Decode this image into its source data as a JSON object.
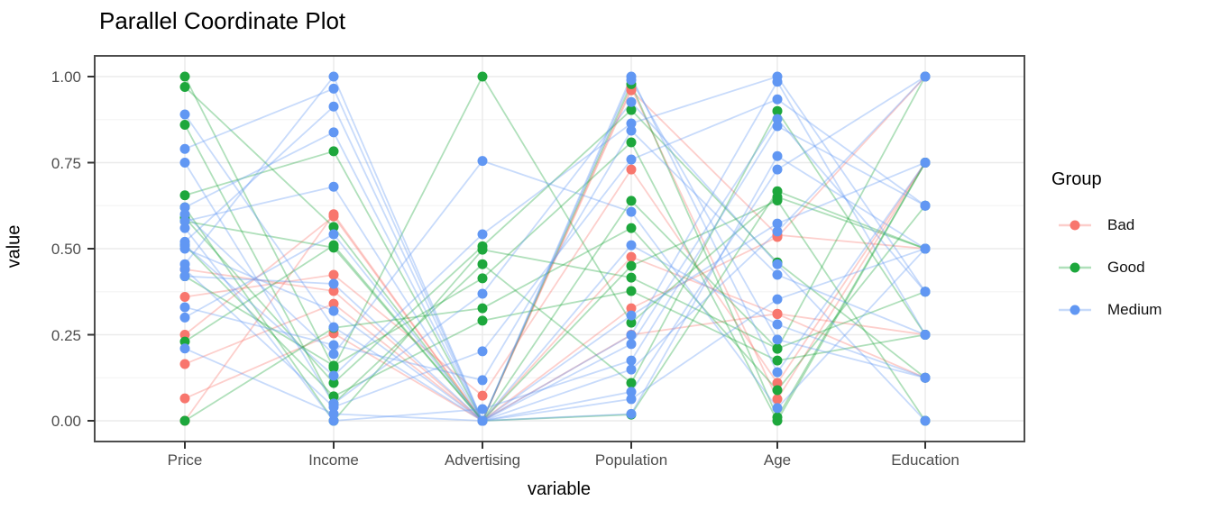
{
  "chart": {
    "title": "Parallel Coordinate Plot",
    "xlabel": "variable",
    "ylabel": "value",
    "legend": {
      "title": "Group",
      "entries": [
        {
          "label": "Bad",
          "color": "#F8766D"
        },
        {
          "label": "Good",
          "color": "#1DA73C"
        },
        {
          "label": "Medium",
          "color": "#6197F3"
        }
      ]
    }
  },
  "chart_data": {
    "type": "line",
    "variant": "parallel-coordinates",
    "title": "Parallel Coordinate Plot",
    "xlabel": "variable",
    "ylabel": "value",
    "categories": [
      "Price",
      "Income",
      "Advertising",
      "Population",
      "Age",
      "Education"
    ],
    "ytick_labels": [
      "0.00",
      "0.25",
      "0.50",
      "0.75",
      "1.00"
    ],
    "ytick_values": [
      0,
      0.25,
      0.5,
      0.75,
      1.0
    ],
    "minor_ytick_values": [
      0.125,
      0.375,
      0.625,
      0.875
    ],
    "ylim": [
      0,
      1
    ],
    "grid": true,
    "legend_position": "right",
    "legend_title": "Group",
    "series": [
      {
        "name": "Bad",
        "color": "#F8766D",
        "observations": [
          [
            0.36,
            0.424,
            0.073,
            0.73,
            0.11,
            0.75
          ],
          [
            0.25,
            0.594,
            0.0,
            0.327,
            0.534,
            1.0
          ],
          [
            0.165,
            0.34,
            0.0,
            0.968,
            0.063,
            0.75
          ],
          [
            0.065,
            0.254,
            0.0,
            0.25,
            0.311,
            0.25
          ],
          [
            0.0,
            0.6,
            0.0,
            0.96,
            0.54,
            0.5
          ],
          [
            0.44,
            0.377,
            0.0,
            0.476,
            0.31,
            0.125
          ]
        ]
      },
      {
        "name": "Good",
        "color": "#1DA73C",
        "observations": [
          [
            1.0,
            0.154,
            1.0,
            0.285,
            0.65,
            0.5
          ],
          [
            0.97,
            0.563,
            0.0,
            0.978,
            0.01,
            0.75
          ],
          [
            0.86,
            0.05,
            0.455,
            0.11,
            0.9,
            0.25
          ],
          [
            0.655,
            0.783,
            0.0,
            0.639,
            0.209,
            1.0
          ],
          [
            0.59,
            0.11,
            0.507,
            0.903,
            0.46,
            0.125
          ],
          [
            0.58,
            0.503,
            0.0,
            0.018,
            0.667,
            0.5
          ],
          [
            0.42,
            0.16,
            0.414,
            0.809,
            0.0,
            0.75
          ],
          [
            0.23,
            0.51,
            0.0,
            0.45,
            0.64,
            0.0
          ],
          [
            0.0,
            0.27,
            0.327,
            0.56,
            0.089,
            0.625
          ],
          [
            0.62,
            0.0,
            0.497,
            0.416,
            0.21,
            0.375
          ],
          [
            0.51,
            0.071,
            0.291,
            0.377,
            0.175,
            0.25
          ]
        ]
      },
      {
        "name": "Medium",
        "color": "#6197F3",
        "observations": [
          [
            0.89,
            0.272,
            0.0,
            1.0,
            0.141,
            0.75
          ],
          [
            0.79,
            0.965,
            0.0,
            0.249,
            0.985,
            0.25
          ],
          [
            0.75,
            0.05,
            0.369,
            0.926,
            0.455,
            0.0
          ],
          [
            0.62,
            0.838,
            0.0,
            0.084,
            0.73,
            1.0
          ],
          [
            0.6,
            0.194,
            0.755,
            0.607,
            0.037,
            0.5
          ],
          [
            0.58,
            0.68,
            0.0,
            0.99,
            0.236,
            0.125
          ],
          [
            0.56,
            0.0,
            0.034,
            0.175,
            0.856,
            0.625
          ],
          [
            0.52,
            0.913,
            0.0,
            0.063,
            0.353,
            0.5
          ],
          [
            0.51,
            0.131,
            0.542,
            0.864,
            1.0,
            0.375
          ],
          [
            0.5,
            0.319,
            0.0,
            0.306,
            0.573,
            0.75
          ],
          [
            0.455,
            1.0,
            0.0,
            0.51,
            0.28,
            0.125
          ],
          [
            0.44,
            0.04,
            0.202,
            0.759,
            0.934,
            0.625
          ],
          [
            0.42,
            0.398,
            0.0,
            0.149,
            0.55,
            1.0
          ],
          [
            0.33,
            0.22,
            0.118,
            0.843,
            0.424,
            0.25
          ],
          [
            0.3,
            0.542,
            0.0,
            0.223,
            0.877,
            0.375
          ],
          [
            0.21,
            0.02,
            0.0,
            0.02,
            0.769,
            0.5
          ]
        ]
      }
    ]
  }
}
